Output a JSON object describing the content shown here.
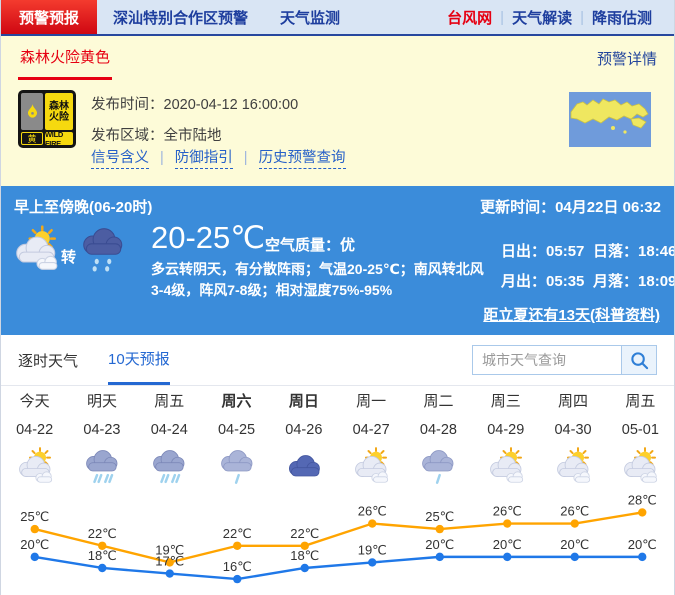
{
  "nav": {
    "tabs": [
      {
        "label": "预警预报",
        "active": true
      },
      {
        "label": "深汕特别合作区预警",
        "active": false
      },
      {
        "label": "天气监测",
        "active": false
      }
    ],
    "links": [
      {
        "label": "台风网",
        "highlight": true
      },
      {
        "label": "天气解读",
        "highlight": false
      },
      {
        "label": "降雨估测",
        "highlight": false
      }
    ]
  },
  "alert": {
    "title": "森林火险黄色",
    "more": "预警详情",
    "badge": {
      "line1": "森林",
      "line2": "火险",
      "level": "黄",
      "en": "WILD FIRE"
    },
    "publish_time_label": "发布时间：",
    "publish_time": "2020-04-12 16:00:00",
    "area_label": "发布区域：",
    "area": "全市陆地",
    "links": [
      "信号含义",
      "防御指引",
      "历史预警查询"
    ]
  },
  "current": {
    "period": "早上至傍晚(06-20时)",
    "update_label": "更新时间：",
    "update_value": "04月22日 06:32",
    "icons": {
      "left": "partly-cloudy",
      "right": "shower"
    },
    "transition": "转",
    "temp": "20-25℃",
    "air_label": "空气质量：",
    "air_value": "优",
    "desc": "多云转阴天，有分散阵雨；气温20-25℃；南风转北风3-4级，阵风7-8级；相对湿度75%-95%",
    "sun_moon": [
      {
        "label": "日出：",
        "value": "05:57"
      },
      {
        "label": "日落：",
        "value": "18:46"
      },
      {
        "label": "月出：",
        "value": "05:35"
      },
      {
        "label": "月落：",
        "value": "18:09"
      }
    ],
    "countdown": "距立夏还有13天(科普资料)"
  },
  "tabs": {
    "hourly": "逐时天气",
    "ten_day": "10天预报"
  },
  "search": {
    "placeholder": "城市天气查询"
  },
  "colors": {
    "accent_red": "#e60012",
    "panel_blue": "#3b8cda",
    "link_blue": "#2660c8"
  },
  "chart_data": {
    "type": "line",
    "categories": [
      "今天",
      "明天",
      "周五",
      "周六",
      "周日",
      "周一",
      "周二",
      "周三",
      "周四",
      "周五"
    ],
    "dates": [
      "04-22",
      "04-23",
      "04-24",
      "04-25",
      "04-26",
      "04-27",
      "04-28",
      "04-29",
      "04-30",
      "05-01"
    ],
    "icons": [
      "partly-cloudy",
      "rain",
      "rain",
      "light-rain",
      "cloudy",
      "partly-cloudy",
      "light-rain",
      "partly-cloudy",
      "partly-cloudy",
      "partly-cloudy"
    ],
    "emphasized": [
      3,
      4
    ],
    "unit": "℃",
    "ylim": [
      14,
      30
    ],
    "grid": false,
    "legend": "none",
    "series": [
      {
        "name": "high",
        "color": "#ffa400",
        "values": [
          25,
          22,
          19,
          22,
          22,
          26,
          25,
          26,
          26,
          28
        ]
      },
      {
        "name": "low",
        "color": "#1f78e8",
        "values": [
          20,
          18,
          17,
          16,
          18,
          19,
          20,
          20,
          20,
          20
        ]
      }
    ]
  }
}
